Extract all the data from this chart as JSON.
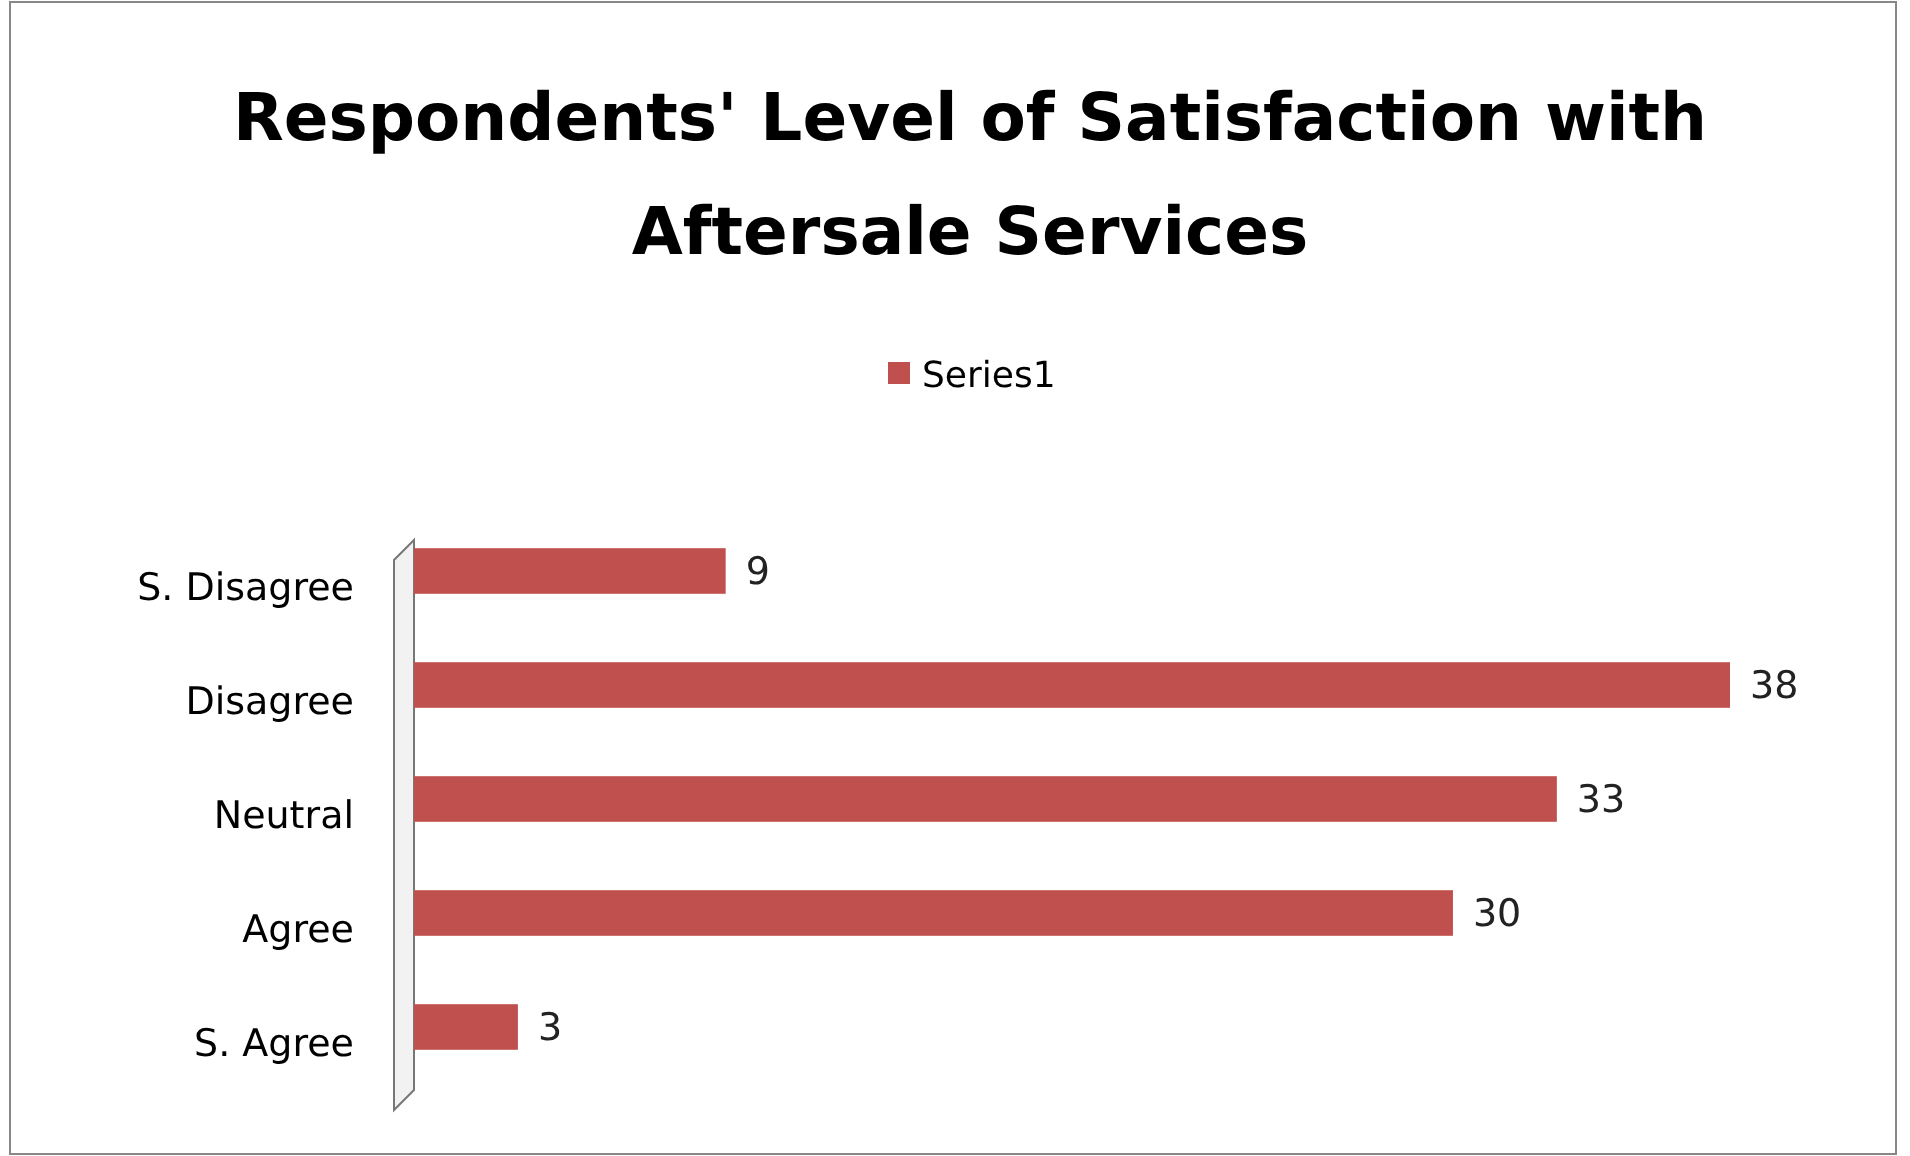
{
  "chart_data": {
    "type": "bar",
    "orientation": "horizontal",
    "title": "Respondents' Level of Satisfaction with Aftersale Services",
    "categories": [
      "S. Disagree",
      "Disagree",
      "Neutral",
      "Agree",
      "S. Agree"
    ],
    "series": [
      {
        "name": "Series1",
        "color": "#c0504d",
        "values": [
          9,
          38,
          33,
          30,
          3
        ]
      }
    ],
    "data_labels": true,
    "legend": "top"
  }
}
